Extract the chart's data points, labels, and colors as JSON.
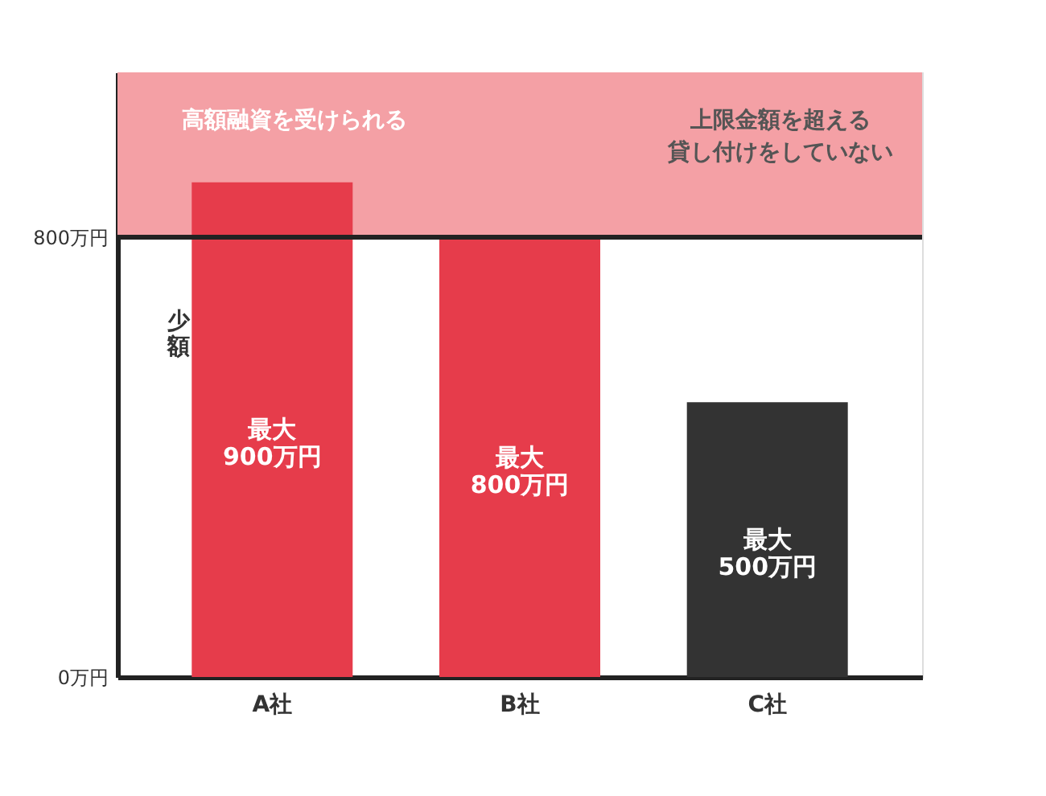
{
  "chart_data": {
    "type": "bar",
    "categories": [
      "A社",
      "B社",
      "C社"
    ],
    "values": [
      900,
      800,
      500
    ],
    "colors": [
      "#e63c4b",
      "#e63c4b",
      "#333333"
    ],
    "value_labels": [
      "最大\n900万円",
      "最大\n800万円",
      "最大\n500万円"
    ],
    "ylim": [
      0,
      1100
    ],
    "yticks": [
      {
        "value": 0,
        "label": "0万円"
      },
      {
        "value": 800,
        "label": "800万円"
      }
    ],
    "ref_lines": [
      {
        "axis": "y",
        "value": 800,
        "color": "#222222"
      }
    ],
    "bands": [
      {
        "axis": "y",
        "from": 800,
        "to": 1100,
        "label": "高額融資を受けられる",
        "color": "#f4a0a5"
      }
    ],
    "annotations": [
      "少額",
      "上限金額を超える",
      "貸し付けをしていない"
    ]
  }
}
